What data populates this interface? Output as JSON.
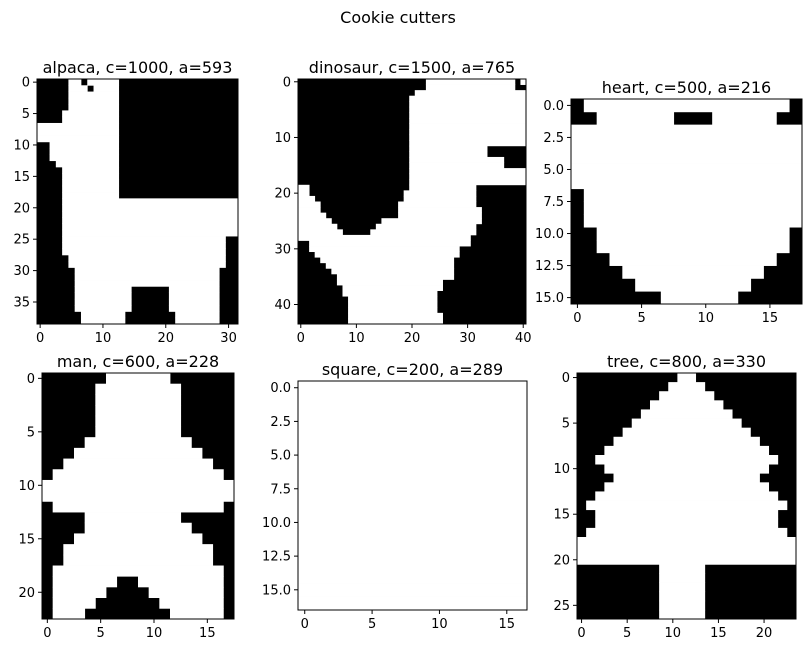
{
  "figure": {
    "suptitle": "Cookie cutters"
  },
  "chart_data": [
    {
      "type": "heatmap",
      "title": "alpaca, c=1000, a=593",
      "xticks": [
        "0",
        "10",
        "20",
        "30"
      ],
      "yticks": [
        "0",
        "5",
        "10",
        "15",
        "20",
        "25",
        "30",
        "35"
      ],
      "xlim": [
        -0.5,
        31.5
      ],
      "ylim": [
        38.5,
        -0.5
      ],
      "cmap": {
        "0": "#000000",
        "1": "#ffffff"
      },
      "grid": false,
      "rows": [
        "00000110111110000000000000000000",
        "00000111011110000000000000000000",
        "00000111111110000000000000000000",
        "00000111111110000000000000000000",
        "00000111111110000000000000000000",
        "00001111111110000000000000000000",
        "00001111111110000000000000000000",
        "11111111111110000000000000000000",
        "11111111111110000000000000000000",
        "11111111111110000000000000000000",
        "00111111111110000000000000000000",
        "00111111111110000000000000000000",
        "00111111111110000000000000000000",
        "00011111111110000000000000000000",
        "00001111111110000000000000000000",
        "00001111111110000000000000000000",
        "00001111111110000000000000000000",
        "00001111111110000000000000000000",
        "00001111111110000000000000000000",
        "00001111111111111111111111111111",
        "00001111111111111111111111111111",
        "00001111111111111111111111111111",
        "00001111111111111111111111111111",
        "00001111111111111111111111111111",
        "00001111111111111111111111111111",
        "00001111111111111111111111111100",
        "00001111111111111111111111111100",
        "00001111111111111111111111111100",
        "00000111111111111111111111111100",
        "00000111111111111111111111111100",
        "00000011111111111111111111111000",
        "00000011111111111111111111111000",
        "00000011111111111111111111111000",
        "00000011111111100000011111111000",
        "00000011111111100000011111111000",
        "00000011111111100000011111111000",
        "00000011111111100000011111111000",
        "00000001111111000000001111111000",
        "00000001111111000000001111111000"
      ]
    },
    {
      "type": "heatmap",
      "title": "dinosaur, c=1500, a=765",
      "xticks": [
        "0",
        "10",
        "20",
        "30",
        "40"
      ],
      "yticks": [
        "0",
        "10",
        "20",
        "30",
        "40"
      ],
      "xlim": [
        -0.5,
        40.5
      ],
      "ylim": [
        43.5,
        -0.5
      ],
      "cmap": {
        "0": "#000000",
        "1": "#ffffff"
      },
      "grid": false,
      "rows": [
        "00000000000000000000000111111111111111101",
        "00000000000000000000000111111111111111100",
        "00000000000000000000011111111111111111111",
        "00000000000000000000111111111111111111111",
        "00000000000000000000111111111111111111111",
        "00000000000000000000111111111111111111111",
        "00000000000000000000111111111111111111111",
        "00000000000000000000111111111111111111111",
        "00000000000000000000111111111111111111111",
        "00000000000000000000111111111111111111111",
        "00000000000000000000111111111111111111111",
        "00000000000000000000111111111111111111111",
        "00000000000000000000111111111111110000000",
        "00000000000000000000111111111111110000000",
        "00000000000000000000111111111111111110000",
        "00000000000000000000111111111111111110000",
        "00000000000000000000111111111111111111111",
        "00000000000000000000111111111111111111111",
        "00000000000000000000111111111111111111111",
        "11000000000000000000111111111111000000000",
        "11000000000000000001111111111111000000000",
        "11100000000000000001111111111111000000000",
        "11110000000000000011111111111111000000000",
        "11110000000000000011111111111111100000000",
        "11111000000000000011111111111111100000000",
        "11111100000000011111111111111111100000000",
        "11111110000000111111111111111111000000000",
        "11111111000001111111111111111111000000000",
        "11111111111111111111111111111110000000000",
        "00111111111111111111111111111110000000000",
        "00111111111111111111111111111000000000000",
        "00011111111111111111111111111000000000000",
        "00001111111111111111111111110000000000000",
        "00000111111111111111111111110000000000000",
        "00000011111111111111111111110000000000000",
        "00000001111111111111111111110000000000000",
        "00000001111111111111111111000000000000000",
        "00000000111111111111111111000000000000000",
        "00000000111111111111111110000000000000000",
        "00000000011111111111111110000000000000000",
        "00000000011111111111111110000000000000000",
        "00000000011111111111111110000000000000000",
        "00000000011111111111111111000000000000000",
        "00000000011111111111111111000000000000000"
      ]
    },
    {
      "type": "heatmap",
      "title": "heart, c=500, a=216",
      "xticks": [
        "0",
        "5",
        "10",
        "15"
      ],
      "yticks": [
        "0.0",
        "2.5",
        "5.0",
        "7.5",
        "10.0",
        "12.5",
        "15.0"
      ],
      "xlim": [
        -0.5,
        17.5
      ],
      "ylim": [
        15.5,
        -0.5
      ],
      "cmap": {
        "0": "#000000",
        "1": "#ffffff"
      },
      "grid": false,
      "rows": [
        "011111111111111110",
        "001111110001111100",
        "111111111111111111",
        "111111111111111111",
        "111111111111111111",
        "111111111111111111",
        "111111111111111111",
        "011111111111111111",
        "011111111111111111",
        "011111111111111111",
        "001111111111111110",
        "001111111111111110",
        "000111111111111100",
        "000011111111111000",
        "000001111111110000",
        "000000011111100000"
      ]
    },
    {
      "type": "heatmap",
      "title": "man, c=600, a=228",
      "xticks": [
        "0",
        "5",
        "10",
        "15"
      ],
      "yticks": [
        "0",
        "5",
        "10",
        "15",
        "20"
      ],
      "xlim": [
        -0.5,
        17.5
      ],
      "ylim": [
        22.5,
        -0.5
      ],
      "cmap": {
        "0": "#000000",
        "1": "#ffffff"
      },
      "grid": false,
      "rows": [
        "000000111111000000",
        "000001111111100000",
        "000001111111100000",
        "000001111111100000",
        "000001111111100000",
        "000001111111100000",
        "000011111111110000",
        "000111111111111000",
        "001111111111111100",
        "011111111111111110",
        "111111111111111111",
        "111111111111111111",
        "011111111111111110",
        "000011111111100000",
        "000011111111110000",
        "000111111111111000",
        "001111111111111100",
        "001111111111111100",
        "011111111111111110",
        "011111100111111110",
        "011111000011111110",
        "011110000001111110",
        "011100000000111110"
      ]
    },
    {
      "type": "heatmap",
      "title": "square, c=200, a=289",
      "xticks": [
        "0",
        "5",
        "10",
        "15"
      ],
      "yticks": [
        "0.0",
        "2.5",
        "5.0",
        "7.5",
        "10.0",
        "12.5",
        "15.0"
      ],
      "xlim": [
        -0.5,
        16.5
      ],
      "ylim": [
        16.5,
        -0.5
      ],
      "cmap": {
        "0": "#000000",
        "1": "#ffffff"
      },
      "grid": false,
      "rows": [
        "11111111111111111",
        "11111111111111111",
        "11111111111111111",
        "11111111111111111",
        "11111111111111111",
        "11111111111111111",
        "11111111111111111",
        "11111111111111111",
        "11111111111111111",
        "11111111111111111",
        "11111111111111111",
        "11111111111111111",
        "11111111111111111",
        "11111111111111111",
        "11111111111111111",
        "11111111111111111",
        "11111111111111111"
      ]
    },
    {
      "type": "heatmap",
      "title": "tree, c=800, a=330",
      "xticks": [
        "0",
        "5",
        "10",
        "15",
        "20"
      ],
      "yticks": [
        "0",
        "5",
        "10",
        "15",
        "20",
        "25"
      ],
      "xlim": [
        -0.5,
        23.5
      ],
      "ylim": [
        26.5,
        -0.5
      ],
      "cmap": {
        "0": "#000000",
        "1": "#ffffff"
      },
      "grid": false,
      "rows": [
        "000000000001100000000000",
        "000000000011110000000000",
        "000000000111111000000000",
        "000000001111111100000000",
        "000000011111111110000000",
        "000000111111111111000000",
        "000001111111111111100000",
        "000011111111111111110000",
        "000111111111111111111000",
        "001111111111111111111100",
        "000111111111111111111000",
        "000011111111111111110000",
        "000111111111111111111000",
        "001111111111111111111100",
        "011111111111111111111110",
        "001111111111111111111100",
        "001111111111111111111100",
        "011111111111111111111110",
        "111111111111111111111111",
        "111111111111111111111111",
        "111111111111111111111111",
        "000000000111110000000000",
        "000000000111110000000000",
        "000000000111110000000000",
        "000000000111110000000000",
        "000000000111110000000000",
        "000000000111110000000000"
      ]
    }
  ]
}
